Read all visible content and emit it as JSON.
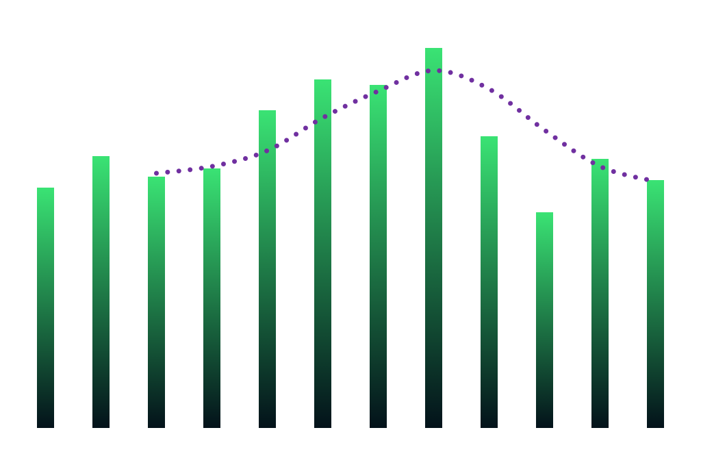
{
  "chart_data": {
    "type": "bar",
    "ylim": [
      0,
      600
    ],
    "series": [
      {
        "type": "bar",
        "color": "#3ae374",
        "gradient_end": "#03121a",
        "values": [
          351,
          397,
          367,
          379,
          464,
          509,
          501,
          555,
          426,
          315,
          393,
          362
        ]
      },
      {
        "type": "line",
        "color": "#7030a0",
        "line_style": "dotted",
        "smooth": true,
        "values": [
          null,
          null,
          372,
          382,
          405,
          453,
          492,
          522,
          495,
          435,
          382,
          360
        ]
      }
    ]
  }
}
